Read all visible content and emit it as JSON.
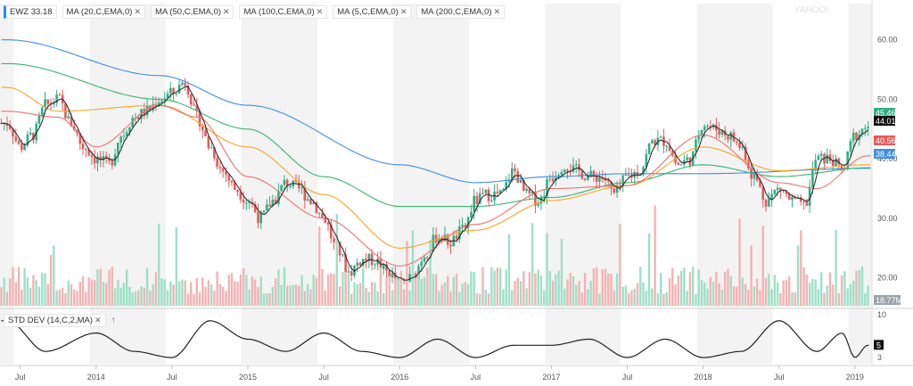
{
  "legend": {
    "ticker": "EWZ 33.18",
    "ma": [
      "MA (20,C,EMA,0)",
      "MA (50,C,EMA,0)",
      "MA (100,C,EMA,0)",
      "MA (5,C,EMA,0)",
      "MA (200,C,EMA,0)"
    ]
  },
  "sub_legend": {
    "label": "STD DEV (14,C,2,MA)",
    "arrow": "↑"
  },
  "colors": {
    "up": "#2fae86",
    "down": "#e65a5a",
    "ma5": "#222222",
    "ma20": "#f07070",
    "ma50": "#f5a623",
    "ma100": "#3cb371",
    "ma200": "#3d8fe0",
    "shade": "#f3f3f3",
    "vol_up": "#9ee0c6",
    "vol_down": "#f4b3b3"
  },
  "price_labels": [
    {
      "text": "45.46",
      "color": "#2fae86"
    },
    {
      "text": "44.01",
      "color": "#111111"
    },
    {
      "text": "40.56",
      "color": "#e65a5a"
    },
    {
      "text": "38.44",
      "color": "#3d8fe0"
    }
  ],
  "volume_label": "18.77M",
  "std_label": "5",
  "chart_data": [
    {
      "type": "candlestick",
      "title": "EWZ",
      "y_ticks": [
        20,
        30,
        40,
        50,
        60
      ],
      "ylim": [
        15,
        64
      ],
      "x_ticks": [
        "Jul",
        "2014",
        "Jul",
        "2015",
        "Jul",
        "2016",
        "Jul",
        "2017",
        "Jul",
        "2018",
        "Jul",
        "2019"
      ],
      "x_range": [
        "2013-06",
        "2019-02"
      ],
      "grid": false,
      "price_anchors": [
        [
          "2013-06",
          46
        ],
        [
          "2013-07",
          42
        ],
        [
          "2013-08",
          44
        ],
        [
          "2013-09",
          49
        ],
        [
          "2013-10",
          50
        ],
        [
          "2013-11",
          46
        ],
        [
          "2013-12",
          42
        ],
        [
          "2014-01",
          40
        ],
        [
          "2014-02",
          39
        ],
        [
          "2014-03",
          44
        ],
        [
          "2014-04",
          47
        ],
        [
          "2014-05",
          48
        ],
        [
          "2014-06",
          50
        ],
        [
          "2014-07",
          51
        ],
        [
          "2014-08",
          53
        ],
        [
          "2014-09",
          47
        ],
        [
          "2014-10",
          42
        ],
        [
          "2014-11",
          38
        ],
        [
          "2014-12",
          35
        ],
        [
          "2015-01",
          33
        ],
        [
          "2015-02",
          30
        ],
        [
          "2015-03",
          33
        ],
        [
          "2015-04",
          36
        ],
        [
          "2015-05",
          35
        ],
        [
          "2015-06",
          33
        ],
        [
          "2015-07",
          30
        ],
        [
          "2015-08",
          25
        ],
        [
          "2015-09",
          21
        ],
        [
          "2015-10",
          23
        ],
        [
          "2015-11",
          23
        ],
        [
          "2015-12",
          21
        ],
        [
          "2016-01",
          19
        ],
        [
          "2016-02",
          20
        ],
        [
          "2016-03",
          24
        ],
        [
          "2016-04",
          27
        ],
        [
          "2016-05",
          26
        ],
        [
          "2016-06",
          28
        ],
        [
          "2016-07",
          33
        ],
        [
          "2016-08",
          34
        ],
        [
          "2016-09",
          34
        ],
        [
          "2016-10",
          38
        ],
        [
          "2016-11",
          34
        ],
        [
          "2016-12",
          33
        ],
        [
          "2017-01",
          37
        ],
        [
          "2017-02",
          39
        ],
        [
          "2017-03",
          38
        ],
        [
          "2017-04",
          37
        ],
        [
          "2017-05",
          37
        ],
        [
          "2017-06",
          34
        ],
        [
          "2017-07",
          37
        ],
        [
          "2017-08",
          38
        ],
        [
          "2017-09",
          43
        ],
        [
          "2017-10",
          43
        ],
        [
          "2017-11",
          39
        ],
        [
          "2017-12",
          40
        ],
        [
          "2018-01",
          46
        ],
        [
          "2018-02",
          45
        ],
        [
          "2018-03",
          44
        ],
        [
          "2018-04",
          42
        ],
        [
          "2018-05",
          37
        ],
        [
          "2018-06",
          33
        ],
        [
          "2018-07",
          35
        ],
        [
          "2018-08",
          33
        ],
        [
          "2018-09",
          32
        ],
        [
          "2018-10",
          40
        ],
        [
          "2018-11",
          40
        ],
        [
          "2018-12",
          38
        ],
        [
          "2019-01",
          44
        ],
        [
          "2019-02",
          45.5
        ]
      ],
      "ma_anchors": {
        "ma200": [
          [
            "2013-06",
            60
          ],
          [
            "2014-06",
            54
          ],
          [
            "2015-01",
            49
          ],
          [
            "2016-01",
            39
          ],
          [
            "2016-07",
            36
          ],
          [
            "2017-01",
            37
          ],
          [
            "2017-07",
            37.5
          ],
          [
            "2018-01",
            37.5
          ],
          [
            "2019-02",
            38.4
          ]
        ],
        "ma100": [
          [
            "2013-06",
            56
          ],
          [
            "2014-06",
            50
          ],
          [
            "2015-01",
            45
          ],
          [
            "2015-07",
            37
          ],
          [
            "2016-01",
            32
          ],
          [
            "2016-07",
            32
          ],
          [
            "2017-01",
            33.5
          ],
          [
            "2017-07",
            36
          ],
          [
            "2018-01",
            39
          ],
          [
            "2018-07",
            37
          ],
          [
            "2019-02",
            38.5
          ]
        ],
        "ma50": [
          [
            "2013-06",
            52
          ],
          [
            "2013-10",
            48
          ],
          [
            "2014-06",
            49
          ],
          [
            "2015-01",
            42
          ],
          [
            "2015-07",
            34
          ],
          [
            "2016-01",
            25
          ],
          [
            "2016-07",
            28
          ],
          [
            "2017-01",
            33
          ],
          [
            "2017-07",
            35.5
          ],
          [
            "2018-01",
            42
          ],
          [
            "2018-07",
            38
          ],
          [
            "2019-02",
            39
          ]
        ],
        "ma20": [
          [
            "2013-06",
            48
          ],
          [
            "2013-10",
            47
          ],
          [
            "2014-01",
            42
          ],
          [
            "2014-06",
            49
          ],
          [
            "2014-09",
            47
          ],
          [
            "2015-01",
            37
          ],
          [
            "2015-07",
            30
          ],
          [
            "2016-01",
            22
          ],
          [
            "2016-07",
            29
          ],
          [
            "2017-01",
            35
          ],
          [
            "2017-07",
            35.5
          ],
          [
            "2018-01",
            44
          ],
          [
            "2018-07",
            36
          ],
          [
            "2018-10",
            35
          ],
          [
            "2019-02",
            40.5
          ]
        ]
      }
    },
    {
      "type": "line",
      "title": "STD DEV (14,C,2,MA)",
      "y_ticks": [
        3,
        5,
        10
      ],
      "ylim": [
        2,
        11
      ],
      "anchors": [
        [
          "2013-06",
          9
        ],
        [
          "2013-09",
          4
        ],
        [
          "2014-01",
          7
        ],
        [
          "2014-04",
          4
        ],
        [
          "2014-07",
          3
        ],
        [
          "2014-10",
          9
        ],
        [
          "2015-01",
          6
        ],
        [
          "2015-04",
          4
        ],
        [
          "2015-07",
          7
        ],
        [
          "2015-10",
          4
        ],
        [
          "2016-01",
          3
        ],
        [
          "2016-04",
          6
        ],
        [
          "2016-07",
          3
        ],
        [
          "2016-10",
          5
        ],
        [
          "2017-01",
          5
        ],
        [
          "2017-04",
          6
        ],
        [
          "2017-07",
          3
        ],
        [
          "2017-10",
          6
        ],
        [
          "2018-01",
          3
        ],
        [
          "2018-04",
          4
        ],
        [
          "2018-07",
          9
        ],
        [
          "2018-10",
          4
        ],
        [
          "2018-12",
          7
        ],
        [
          "2019-01",
          3
        ],
        [
          "2019-02",
          5
        ]
      ]
    }
  ]
}
